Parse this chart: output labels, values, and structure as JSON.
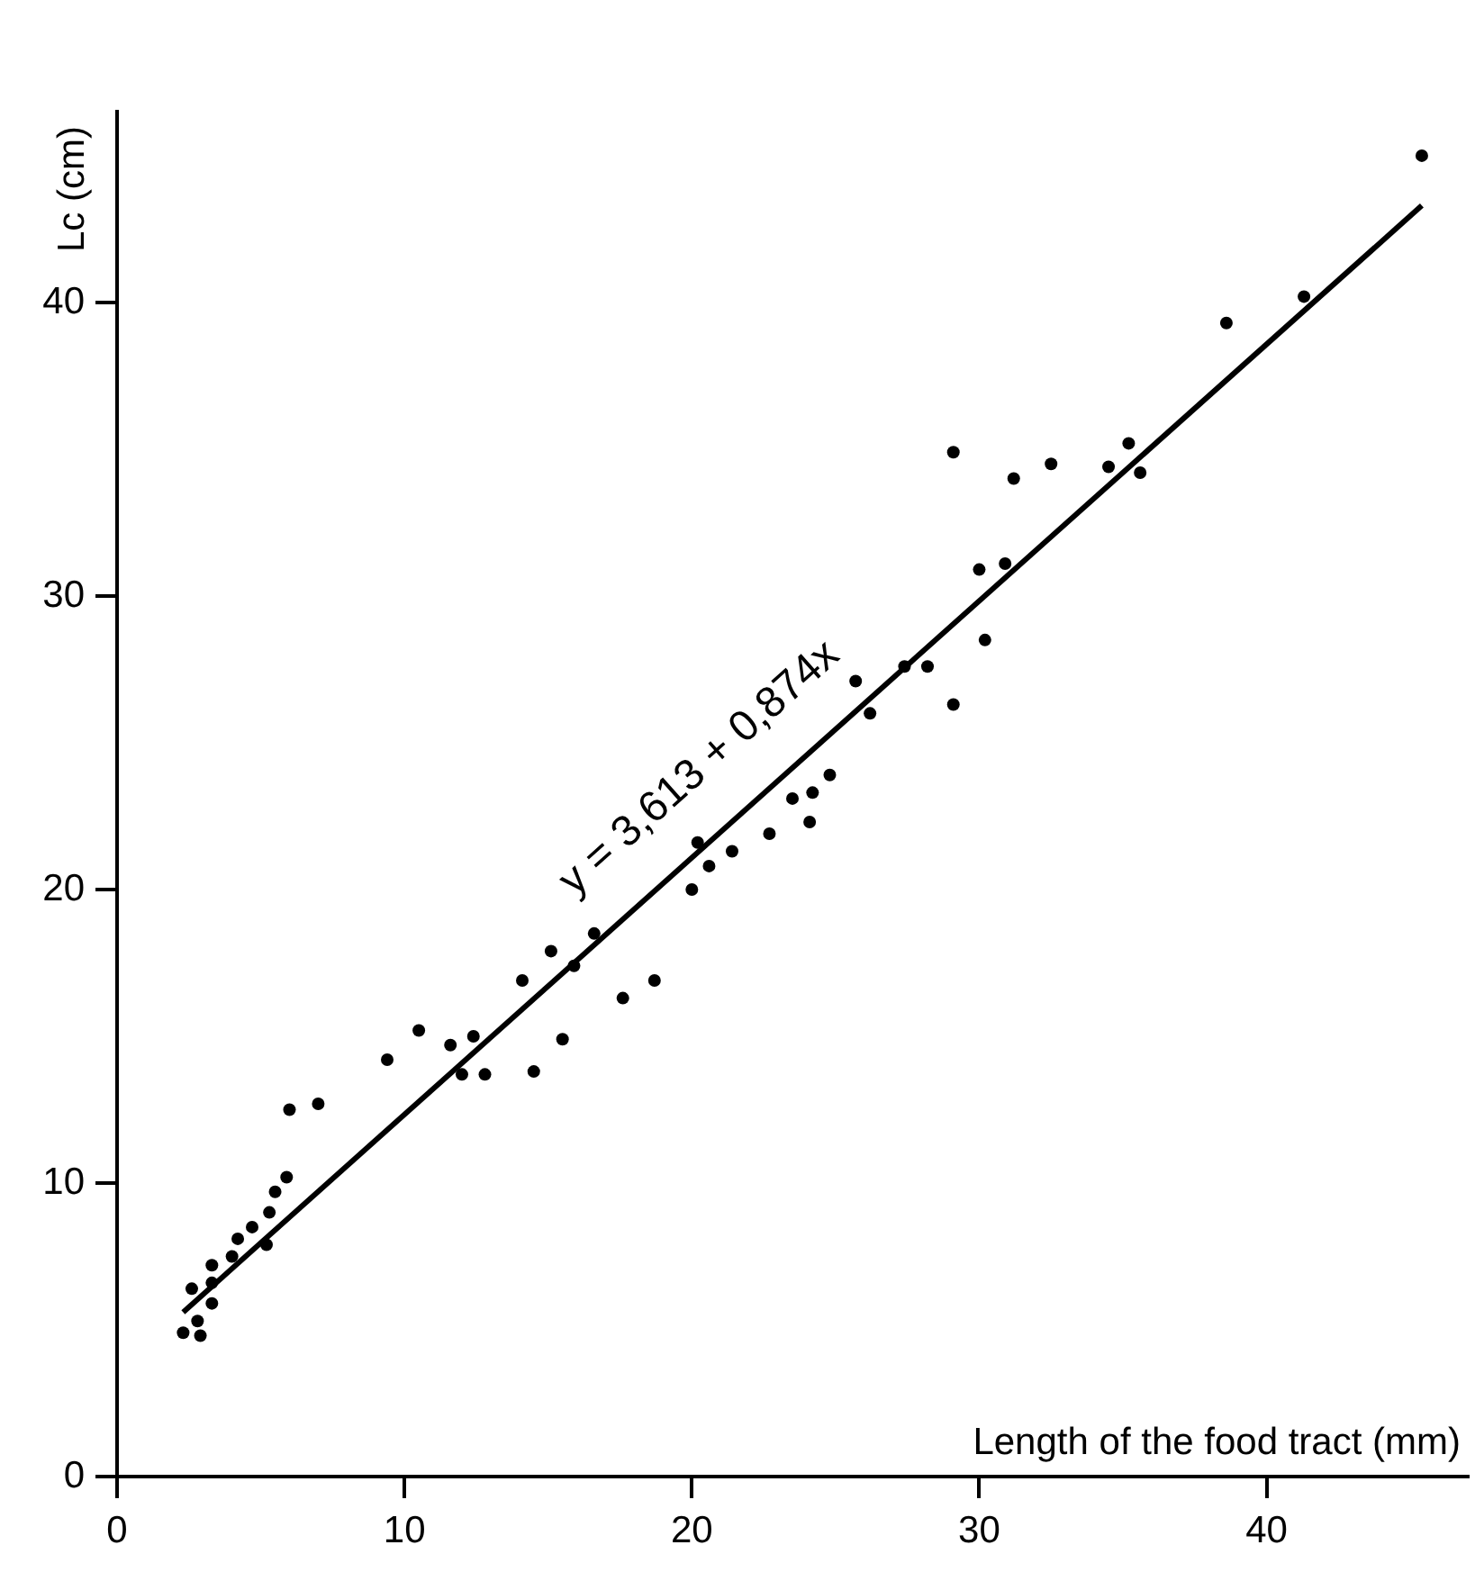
{
  "chart_data": {
    "type": "scatter",
    "xlabel": "Length of the food tract (mm)",
    "ylabel": "Lc (cm)",
    "xlim": [
      0,
      47
    ],
    "ylim": [
      0,
      46.5
    ],
    "xticks": [
      0,
      10,
      20,
      30,
      40
    ],
    "yticks": [
      0,
      10,
      20,
      30,
      40
    ],
    "grid": false,
    "legend": false,
    "marker": "circle",
    "annotations": [
      "y = 3,613 + 0,874x"
    ],
    "series": [
      {
        "color": "#000000",
        "x": [
          2.3,
          2.9,
          2.8,
          3.3,
          2.6,
          3.3,
          3.3,
          4.0,
          4.2,
          4.7,
          5.2,
          5.3,
          5.5,
          5.9,
          6.0,
          7.0,
          9.4,
          10.5,
          11.6,
          12.4,
          12.0,
          12.8,
          14.5,
          15.5,
          14.1,
          15.1,
          15.9,
          16.6,
          17.6,
          18.7,
          20.0,
          20.6,
          21.4,
          20.2,
          22.7,
          23.5,
          24.1,
          24.2,
          24.8,
          26.2,
          29.1,
          25.7,
          27.4,
          28.2,
          30.2,
          30.0,
          30.9,
          29.1,
          31.2,
          32.5,
          34.5,
          35.2,
          35.6,
          38.6,
          41.3,
          45.4
        ],
        "values": [
          4.9,
          4.8,
          5.3,
          5.9,
          6.4,
          6.6,
          7.2,
          7.5,
          8.1,
          8.5,
          7.9,
          9.0,
          9.7,
          10.2,
          12.5,
          12.7,
          14.2,
          15.2,
          14.7,
          15.0,
          13.7,
          13.7,
          13.8,
          14.9,
          16.9,
          17.9,
          17.4,
          18.5,
          16.3,
          16.9,
          20.0,
          20.8,
          21.3,
          21.6,
          21.9,
          23.1,
          22.3,
          23.3,
          23.9,
          26.0,
          26.3,
          27.1,
          27.6,
          27.6,
          28.5,
          30.9,
          31.1,
          34.9,
          34.0,
          34.5,
          34.4,
          35.2,
          34.2,
          39.3,
          40.2,
          45.0
        ]
      },
      {
        "type": "line",
        "color": "#000000",
        "x": [
          2.3,
          45.4
        ],
        "values": [
          5.6,
          43.3
        ],
        "marker": "none"
      }
    ]
  }
}
